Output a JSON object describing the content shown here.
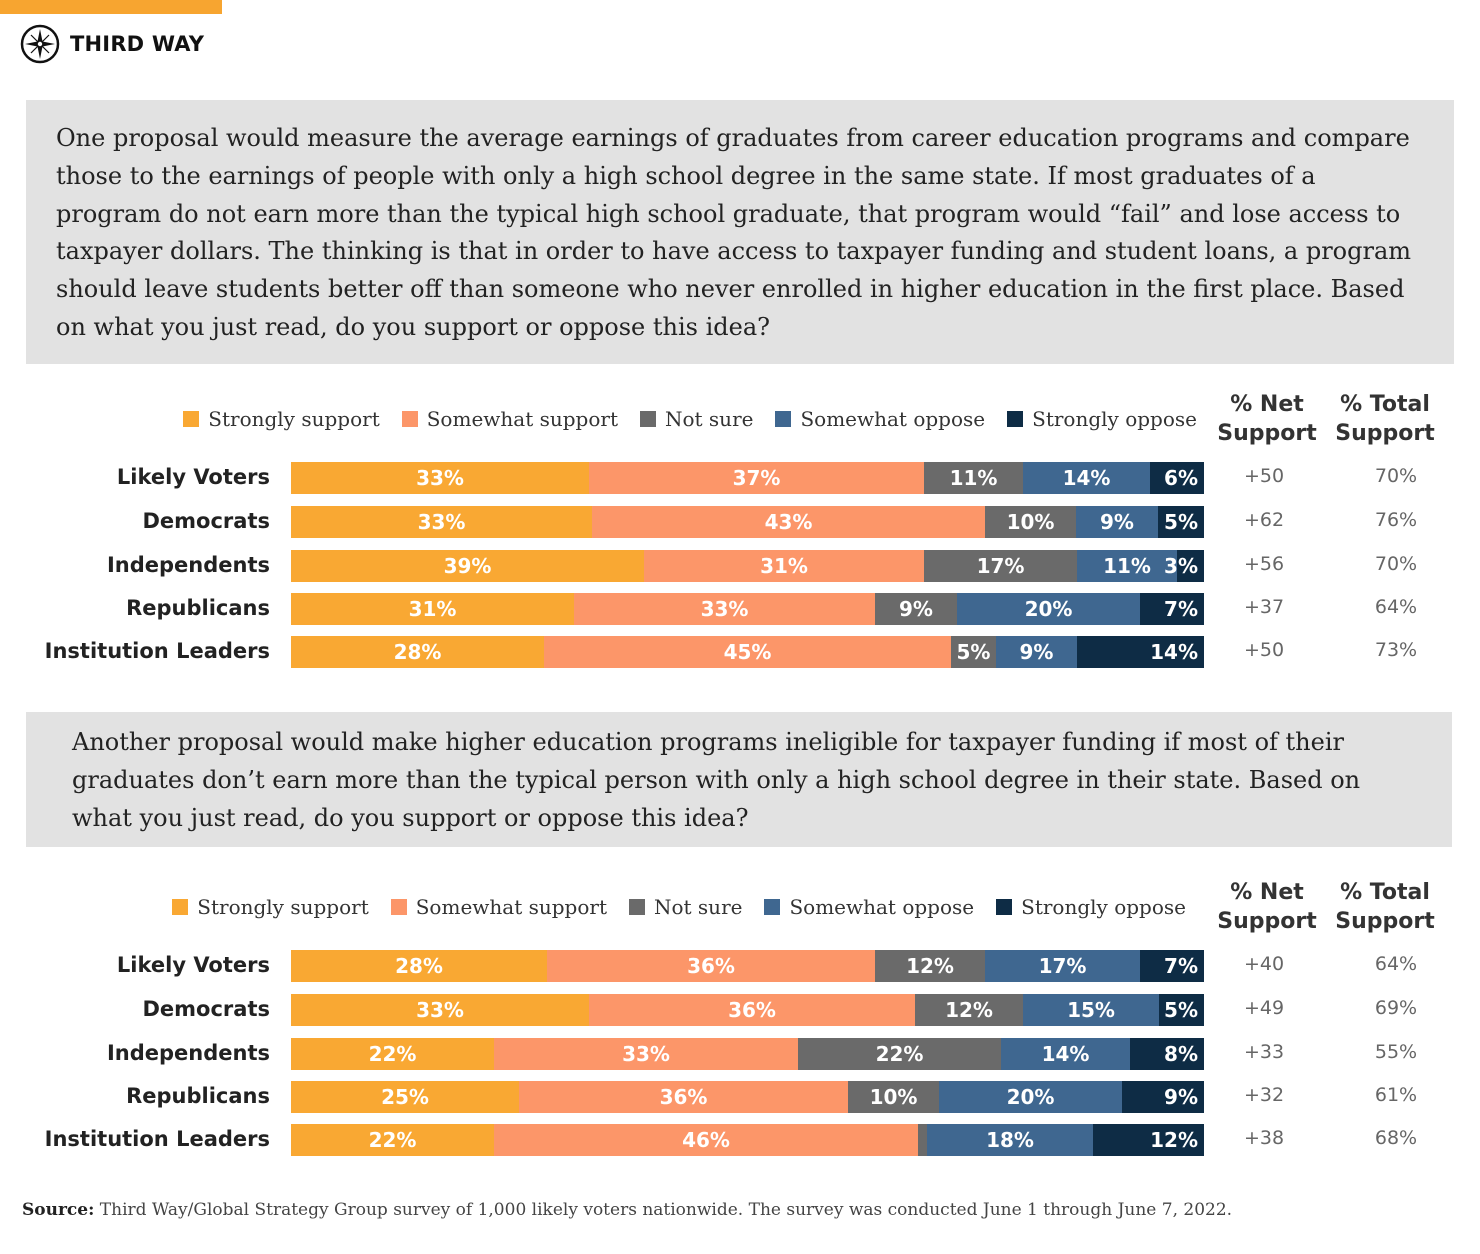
{
  "brand": {
    "name": "THIRD WAY",
    "accent": "#f7a530"
  },
  "colors": {
    "Strongly support": "#f9a833",
    "Somewhat support": "#fc9669",
    "Not sure": "#6a6a6a",
    "Somewhat oppose": "#3f6790",
    "Strongly oppose": "#0e2c45"
  },
  "questions": [
    {
      "text": "One proposal would measure the average earnings of graduates from career education programs and compare those to the earnings of people with only a high school degree in the same state. If most graduates of a program do not earn more than the typical high school graduate, that program would “fail” and lose access to taxpayer dollars. The thinking is that in order to have access to taxpayer funding and student loans, a program should leave students better off than someone who never enrolled in higher education in the first place. Based on what you just read, do you support or oppose this idea?"
    },
    {
      "text": "Another proposal would make higher education programs ineligible for taxpayer funding if most of their graduates don’t earn more than the typical person with only a high school degree in their state. Based on what you just read, do you support or oppose this idea?"
    }
  ],
  "chart_data": [
    {
      "type": "bar",
      "orientation": "horizontal",
      "stacked": true,
      "legend": [
        "Strongly support",
        "Somewhat support",
        "Not sure",
        "Somewhat oppose",
        "Strongly oppose"
      ],
      "col_headers": {
        "net": "% Net Support",
        "total": "% Total Support"
      },
      "categories": [
        "Likely Voters",
        "Democrats",
        "Independents",
        "Republicans",
        "Institution Leaders"
      ],
      "series": [
        {
          "name": "Strongly support",
          "values": [
            33,
            33,
            39,
            31,
            28
          ],
          "labels": [
            "33%",
            "33%",
            "39%",
            "31%",
            "28%"
          ]
        },
        {
          "name": "Somewhat support",
          "values": [
            37,
            43,
            31,
            33,
            45
          ],
          "labels": [
            "37%",
            "43%",
            "31%",
            "33%",
            "45%"
          ]
        },
        {
          "name": "Not sure",
          "values": [
            11,
            10,
            17,
            9,
            5
          ],
          "labels": [
            "11%",
            "10%",
            "17%",
            "9%",
            "5%"
          ]
        },
        {
          "name": "Somewhat oppose",
          "values": [
            14,
            9,
            11,
            20,
            9
          ],
          "labels": [
            "14%",
            "9%",
            "11%",
            "20%",
            "9%"
          ]
        },
        {
          "name": "Strongly oppose",
          "values": [
            6,
            5,
            3,
            7,
            14
          ],
          "labels": [
            "6%",
            "5%",
            "3%",
            "7%",
            "14%"
          ]
        }
      ],
      "net_support": [
        "+50",
        "+62",
        "+56",
        "+37",
        "+50"
      ],
      "total_support": [
        "70%",
        "76%",
        "70%",
        "64%",
        "73%"
      ]
    },
    {
      "type": "bar",
      "orientation": "horizontal",
      "stacked": true,
      "legend": [
        "Strongly support",
        "Somewhat support",
        "Not sure",
        "Somewhat oppose",
        "Strongly oppose"
      ],
      "col_headers": {
        "net": "% Net Support",
        "total": "% Total Support"
      },
      "categories": [
        "Likely Voters",
        "Democrats",
        "Independents",
        "Republicans",
        "Institution Leaders"
      ],
      "series": [
        {
          "name": "Strongly support",
          "values": [
            28,
            33,
            22,
            25,
            22
          ],
          "labels": [
            "28%",
            "33%",
            "22%",
            "25%",
            "22%"
          ]
        },
        {
          "name": "Somewhat support",
          "values": [
            36,
            36,
            33,
            36,
            46
          ],
          "labels": [
            "36%",
            "36%",
            "33%",
            "36%",
            "46%"
          ]
        },
        {
          "name": "Not sure",
          "values": [
            12,
            12,
            22,
            10,
            1
          ],
          "labels": [
            "12%",
            "12%",
            "22%",
            "10%",
            ""
          ]
        },
        {
          "name": "Somewhat oppose",
          "values": [
            17,
            15,
            14,
            20,
            18
          ],
          "labels": [
            "17%",
            "15%",
            "14%",
            "20%",
            "18%"
          ]
        },
        {
          "name": "Strongly oppose",
          "values": [
            7,
            5,
            8,
            9,
            12
          ],
          "labels": [
            "7%",
            "5%",
            "8%",
            "9%",
            "12%"
          ]
        }
      ],
      "net_support": [
        "+40",
        "+49",
        "+33",
        "+32",
        "+38"
      ],
      "total_support": [
        "64%",
        "69%",
        "55%",
        "61%",
        "68%"
      ]
    }
  ],
  "source": {
    "label": "Source:",
    "text": "Third Way/Global Strategy Group survey of 1,000 likely voters nationwide. The survey was conducted June 1 through June 7, 2022."
  }
}
